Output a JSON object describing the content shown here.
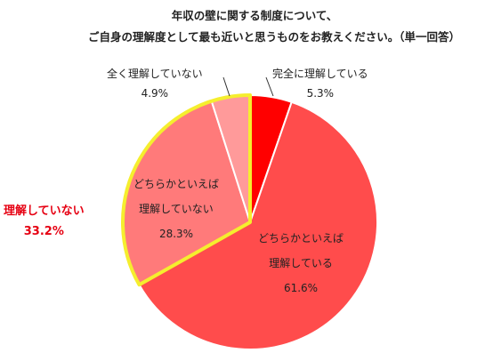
{
  "chart_data": {
    "type": "pie",
    "title": "年収の壁に関する制度について、",
    "subtitle": "ご自身の理解度として最も近いと思うものをお教えください。（単一回答）",
    "slices": [
      {
        "label": "完全に理解している",
        "value": 5.3,
        "value_label": "5.3%",
        "color": "#ff0000"
      },
      {
        "label_lines": [
          "どちらかといえば",
          "理解している"
        ],
        "value": 61.6,
        "value_label": "61.6%",
        "color": "#ff4c4c"
      },
      {
        "label_lines": [
          "どちらかといえば",
          "理解していない"
        ],
        "value": 28.3,
        "value_label": "28.3%",
        "color": "#ff7a7a"
      },
      {
        "label": "全く理解していない",
        "value": 4.9,
        "value_label": "4.9%",
        "color": "#ff9a9a"
      }
    ],
    "annotation": {
      "label": "理解していない",
      "value_label": "33.2%",
      "highlight_color": "#f5ee2e"
    }
  }
}
